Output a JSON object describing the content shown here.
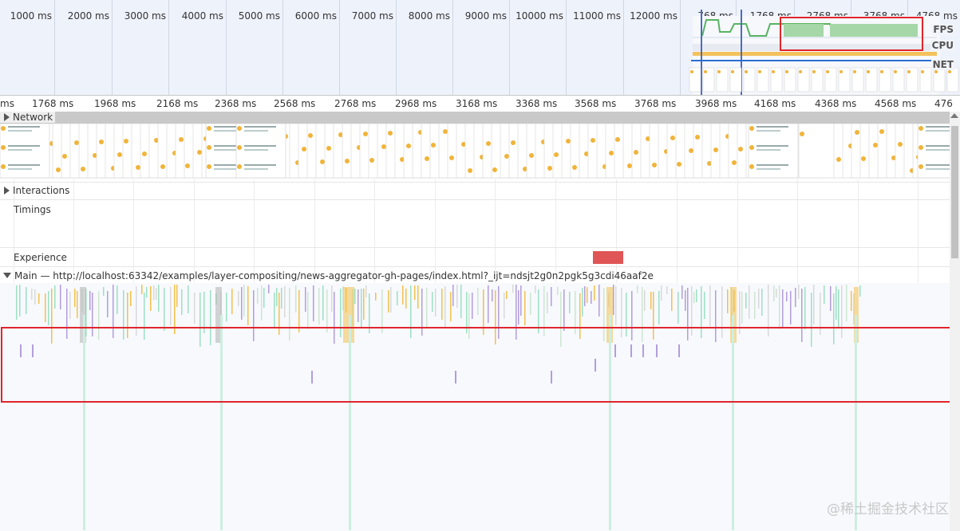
{
  "overview": {
    "ruler_labels": [
      "1000 ms",
      "2000 ms",
      "3000 ms",
      "4000 ms",
      "5000 ms",
      "6000 ms",
      "7000 ms",
      "8000 ms",
      "9000 ms",
      "10000 ms",
      "11000 ms",
      "12000 ms",
      "768 ms",
      "1768 ms",
      "2768 ms",
      "3768 ms",
      "4768 ms"
    ],
    "tracks": {
      "fps": "FPS",
      "cpu": "CPU",
      "net": "NET"
    }
  },
  "main_ruler": {
    "labels": [
      "ms",
      "1768 ms",
      "1968 ms",
      "2168 ms",
      "2368 ms",
      "2568 ms",
      "2768 ms",
      "2968 ms",
      "3168 ms",
      "3368 ms",
      "3568 ms",
      "3768 ms",
      "3968 ms",
      "4168 ms",
      "4368 ms",
      "4568 ms",
      "476"
    ]
  },
  "tracks": {
    "network": "Network",
    "interactions": "Interactions",
    "timings": "Timings",
    "experience": "Experience",
    "main": "Main — http://localhost:63342/examples/layer-compositing/news-aggregator-gh-pages/index.html?_ijt=ndsjt2g0n2pgk5g3cdi46aaf2e"
  },
  "colors": {
    "highlight": "#e0252c",
    "scripting": "#f2c14e",
    "rendering": "#b39ddb",
    "painting": "#9de0c4",
    "fps_green": "#58b463"
  },
  "watermark": "@稀土掘金技术社区"
}
